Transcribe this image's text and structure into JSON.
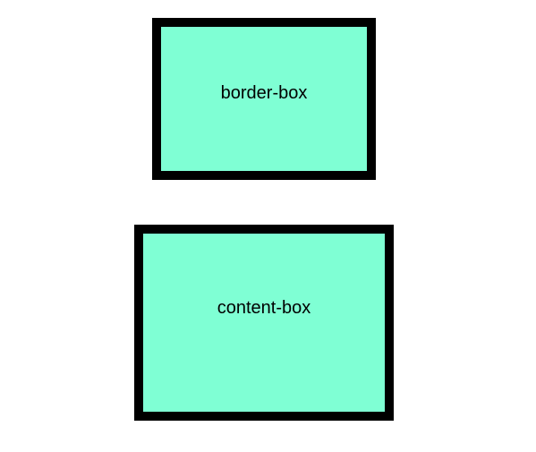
{
  "boxes": {
    "border_box": {
      "label": "border-box",
      "fill_color": "#7fffd4",
      "border_color": "#000000"
    },
    "content_box": {
      "label": "content-box",
      "fill_color": "#7fffd4",
      "border_color": "#000000"
    }
  }
}
